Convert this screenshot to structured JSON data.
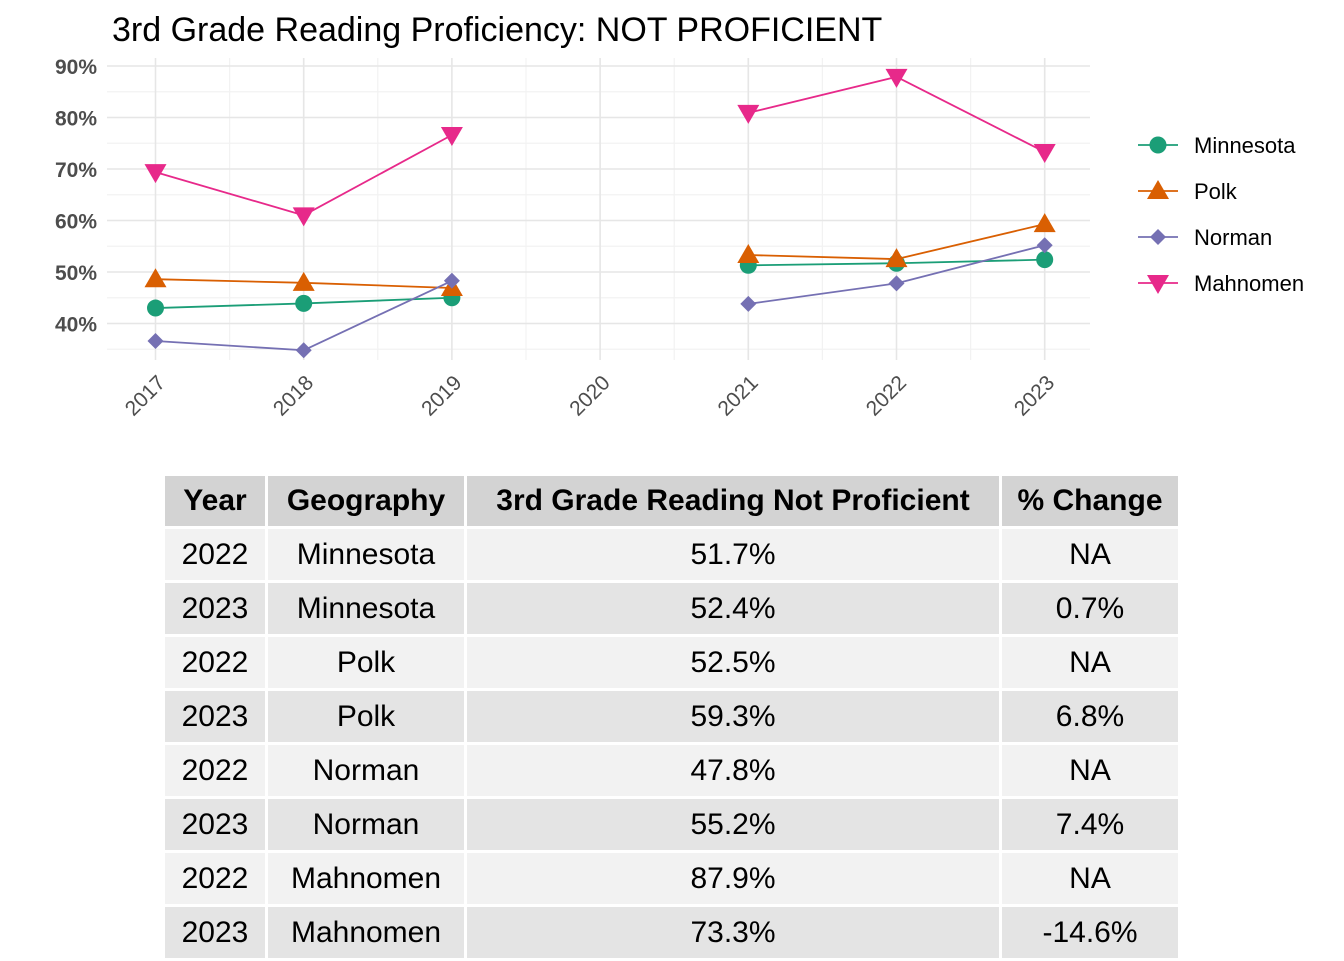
{
  "chart_data": {
    "type": "line",
    "title": "3rd Grade Reading Proficiency: NOT PROFICIENT",
    "x": [
      "2017",
      "2018",
      "2019",
      "2020",
      "2021",
      "2022",
      "2023"
    ],
    "y_ticks": [
      "40%",
      "50%",
      "60%",
      "70%",
      "80%",
      "90%"
    ],
    "ylim": [
      32,
      91
    ],
    "grid": true,
    "legend_position": "right",
    "series": [
      {
        "name": "Minnesota",
        "color": "#1b9e77",
        "marker": "circle",
        "values": [
          43.0,
          43.9,
          45.0,
          null,
          51.3,
          51.7,
          52.4
        ]
      },
      {
        "name": "Polk",
        "color": "#d95f02",
        "marker": "triangle-up",
        "values": [
          48.6,
          47.9,
          46.9,
          null,
          53.3,
          52.5,
          59.3
        ]
      },
      {
        "name": "Norman",
        "color": "#7570b3",
        "marker": "diamond",
        "values": [
          36.6,
          34.8,
          48.3,
          null,
          43.8,
          47.8,
          55.2
        ]
      },
      {
        "name": "Mahnomen",
        "color": "#e7298a",
        "marker": "triangle-down",
        "values": [
          69.4,
          61.0,
          76.6,
          null,
          80.9,
          87.9,
          73.3
        ]
      }
    ]
  },
  "table": {
    "headers": [
      "Year",
      "Geography",
      "3rd Grade Reading Not Proficient",
      "% Change"
    ],
    "rows": [
      [
        "2022",
        "Minnesota",
        "51.7%",
        "NA"
      ],
      [
        "2023",
        "Minnesota",
        "52.4%",
        "0.7%"
      ],
      [
        "2022",
        "Polk",
        "52.5%",
        "NA"
      ],
      [
        "2023",
        "Polk",
        "59.3%",
        "6.8%"
      ],
      [
        "2022",
        "Norman",
        "47.8%",
        "NA"
      ],
      [
        "2023",
        "Norman",
        "55.2%",
        "7.4%"
      ],
      [
        "2022",
        "Mahnomen",
        "87.9%",
        "NA"
      ],
      [
        "2023",
        "Mahnomen",
        "73.3%",
        "-14.6%"
      ]
    ]
  }
}
